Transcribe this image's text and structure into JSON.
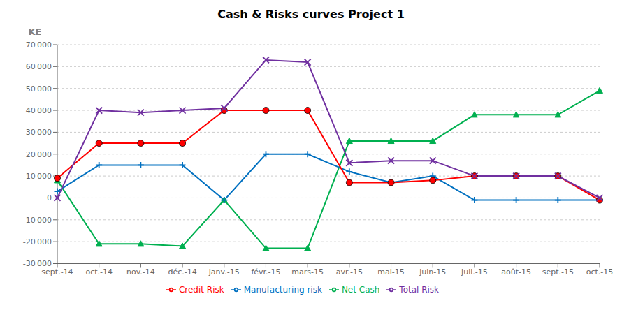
{
  "chart_data": {
    "type": "line",
    "title": "Cash & Risks curves Project 1",
    "ylabel": "KE",
    "categories": [
      "sept.-14",
      "oct.-14",
      "nov.-14",
      "déc.-14",
      "janv.-15",
      "févr.-15",
      "mars-15",
      "avr.-15",
      "mai-15",
      "juin-15",
      "juil.-15",
      "août-15",
      "sept.-15",
      "oct.-15"
    ],
    "series": [
      {
        "name": "Net Cash",
        "color": "#00b050",
        "marker": "triangle",
        "values": [
          8000,
          -21000,
          -21000,
          -22000,
          -1000,
          -23000,
          -23000,
          26000,
          26000,
          26000,
          38000,
          38000,
          38000,
          49000
        ]
      },
      {
        "name": "Manufacturing risk",
        "color": "#0070c0",
        "marker": "plus",
        "values": [
          3000,
          15000,
          15000,
          15000,
          -1000,
          20000,
          20000,
          12000,
          7000,
          10000,
          -1000,
          -1000,
          -1000,
          -1000
        ]
      },
      {
        "name": "Credit Risk",
        "color": "#ff0000",
        "marker": "circle",
        "values": [
          9000,
          25000,
          25000,
          25000,
          40000,
          40000,
          40000,
          7000,
          7000,
          8000,
          10000,
          10000,
          10000,
          -1000
        ]
      },
      {
        "name": "Total Risk",
        "color": "#7030a0",
        "marker": "x",
        "values": [
          0,
          40000,
          39000,
          40000,
          41000,
          63000,
          62000,
          16000,
          17000,
          17000,
          10000,
          10000,
          10000,
          0
        ]
      }
    ],
    "ylim": [
      -30000,
      70000
    ],
    "yticks": [
      {
        "value": -30000,
        "label": "-30 000"
      },
      {
        "value": -20000,
        "label": "-20 000"
      },
      {
        "value": -10000,
        "label": "-10 000"
      },
      0,
      {
        "value": 10000,
        "label": "10 000"
      },
      {
        "value": 20000,
        "label": "20 000"
      },
      {
        "value": 30000,
        "label": "30 000"
      },
      {
        "value": 40000,
        "label": "40 000"
      },
      {
        "value": 50000,
        "label": "50 000"
      },
      {
        "value": 60000,
        "label": "60 000"
      },
      {
        "value": 70000,
        "label": "70 000"
      }
    ],
    "grid": true,
    "legend": "bottom"
  }
}
